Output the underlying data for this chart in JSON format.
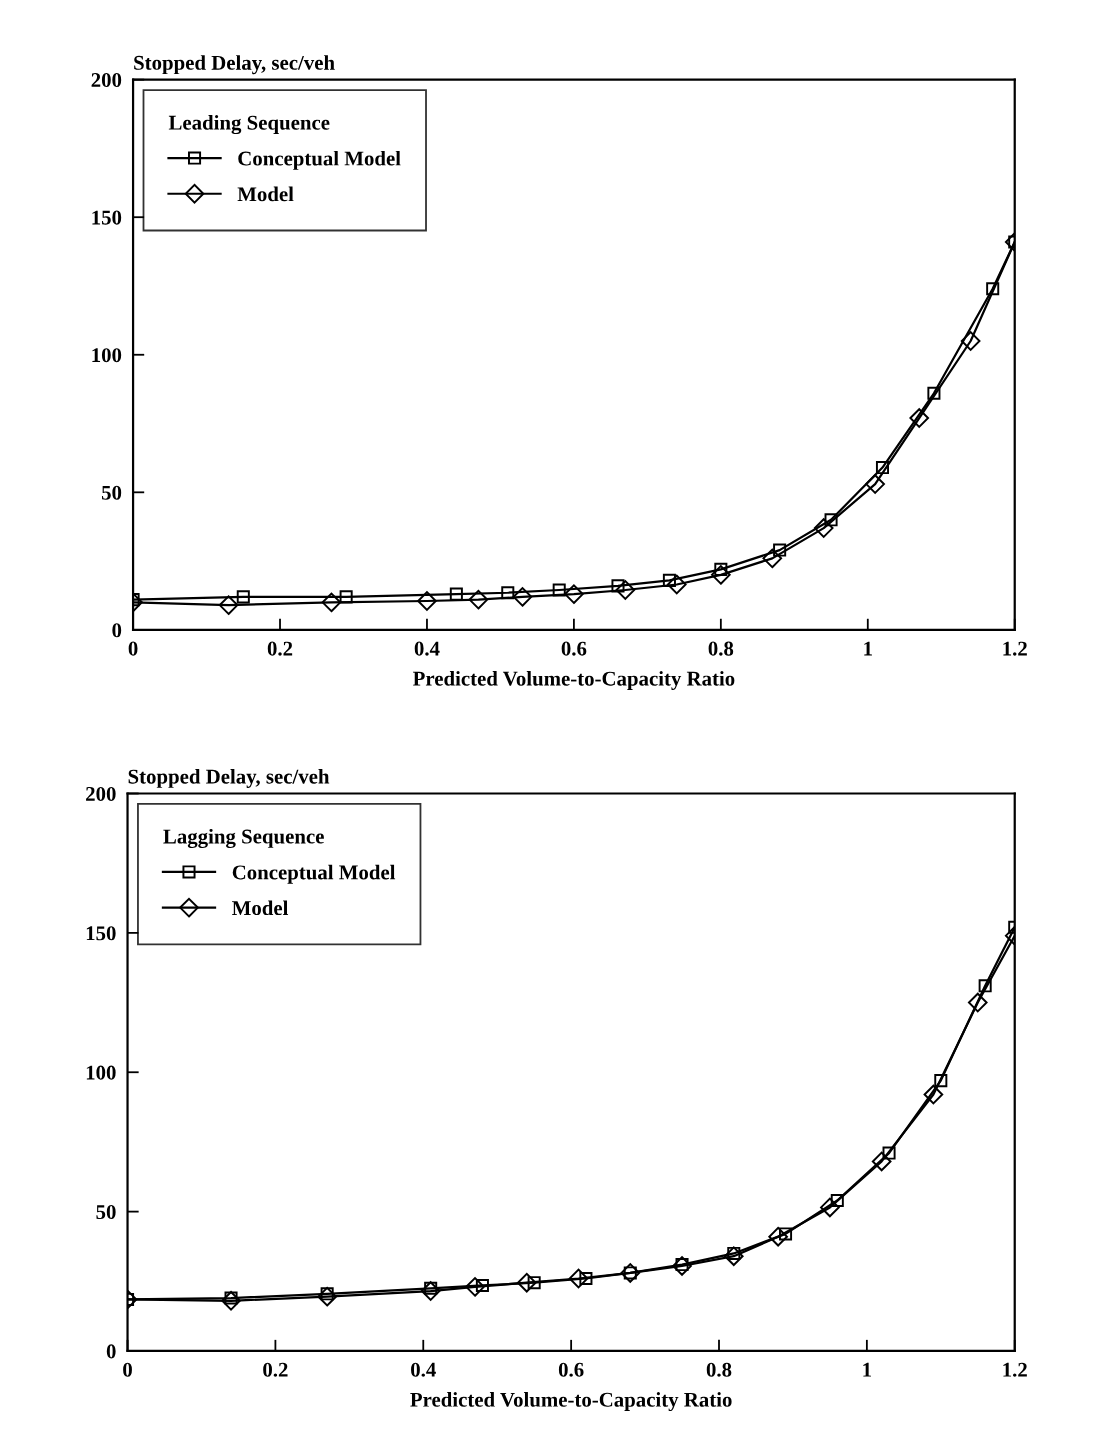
{
  "chart_data": [
    {
      "type": "line",
      "xlabel": "Predicted Volume-to-Capacity Ratio",
      "ylabel": "Stopped Delay, sec/veh",
      "legend_title": "Leading Sequence",
      "legend": "top left",
      "xlim": [
        0,
        1.2
      ],
      "xticks": [
        0,
        0.2,
        0.4,
        0.6,
        0.8,
        1,
        1.2
      ],
      "ylim": [
        0,
        200
      ],
      "yticks": [
        0,
        50,
        100,
        150,
        200
      ],
      "grid": false,
      "series": [
        {
          "name": "Conceptual Model",
          "color": "#000000",
          "marker": "square",
          "x": [
            0,
            0.15,
            0.29,
            0.44,
            0.51,
            0.58,
            0.66,
            0.73,
            0.8,
            0.88,
            0.95,
            1.02,
            1.09,
            1.17,
            1.2
          ],
          "values": [
            11,
            12,
            12,
            13,
            13.5,
            14.5,
            16,
            18,
            22,
            29,
            40,
            59,
            86,
            124,
            141
          ]
        },
        {
          "name": "Model",
          "color": "#000000",
          "marker": "diamond",
          "x": [
            0,
            0.13,
            0.27,
            0.4,
            0.47,
            0.53,
            0.6,
            0.67,
            0.74,
            0.8,
            0.87,
            0.94,
            1.01,
            1.07,
            1.14,
            1.2
          ],
          "values": [
            10,
            9,
            10,
            10.5,
            11,
            12,
            13,
            14.5,
            16.5,
            20,
            26,
            37,
            53,
            77,
            105,
            141
          ]
        }
      ]
    },
    {
      "type": "line",
      "xlabel": "Predicted Volume-to-Capacity Ratio",
      "ylabel": "Stopped Delay, sec/veh",
      "legend_title": "Lagging Sequence",
      "legend": "top left",
      "xlim": [
        0,
        1.2
      ],
      "xticks": [
        0,
        0.2,
        0.4,
        0.6,
        0.8,
        1,
        1.2
      ],
      "ylim": [
        0,
        200
      ],
      "yticks": [
        0,
        50,
        100,
        150,
        200
      ],
      "grid": false,
      "series": [
        {
          "name": "Conceptual Model",
          "color": "#000000",
          "marker": "square",
          "x": [
            0,
            0.14,
            0.27,
            0.41,
            0.48,
            0.55,
            0.62,
            0.68,
            0.75,
            0.82,
            0.89,
            0.96,
            1.03,
            1.1,
            1.16,
            1.2
          ],
          "values": [
            18.5,
            19,
            20.5,
            22.5,
            23.5,
            24.5,
            26,
            28,
            31,
            35,
            42,
            54,
            71,
            97,
            131,
            152
          ]
        },
        {
          "name": "Model",
          "color": "#000000",
          "marker": "diamond",
          "x": [
            0,
            0.14,
            0.27,
            0.41,
            0.47,
            0.54,
            0.61,
            0.68,
            0.75,
            0.82,
            0.88,
            0.95,
            1.02,
            1.09,
            1.15,
            1.2
          ],
          "values": [
            18.5,
            18,
            19.5,
            21.5,
            23,
            24.5,
            26,
            28,
            30.5,
            34,
            41,
            51.5,
            68,
            92,
            125,
            149
          ]
        }
      ]
    }
  ]
}
